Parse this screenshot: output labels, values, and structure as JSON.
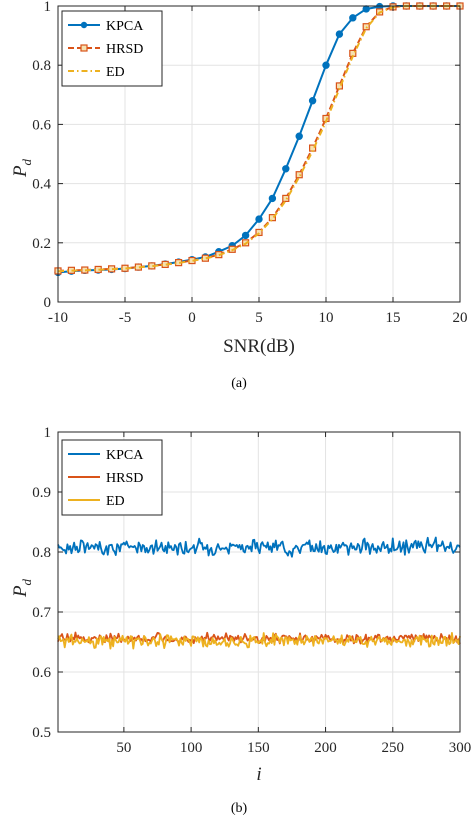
{
  "chart_data": [
    {
      "type": "line",
      "xlabel": "SNR(dB)",
      "ylabel": "P_d",
      "ylabel_main": "P",
      "ylabel_sub": "d",
      "caption": "(a)",
      "xlim": [
        -10,
        20
      ],
      "ylim": [
        0,
        1
      ],
      "xticks": [
        -10,
        -5,
        0,
        5,
        10,
        15,
        20
      ],
      "xtick_labels": [
        "-10",
        "-5",
        "0",
        "5",
        "10",
        "15",
        "20"
      ],
      "yticks": [
        0,
        0.2,
        0.4,
        0.6,
        0.8,
        1
      ],
      "ytick_labels": [
        "0",
        "0.2",
        "0.4",
        "0.6",
        "0.8",
        "1"
      ],
      "grid": true,
      "legend_position": "top-left",
      "x": [
        -10,
        -9,
        -8,
        -7,
        -6,
        -5,
        -4,
        -3,
        -2,
        -1,
        0,
        1,
        2,
        3,
        4,
        5,
        6,
        7,
        8,
        9,
        10,
        11,
        12,
        13,
        14,
        15,
        16,
        17,
        18,
        19,
        20
      ],
      "series": [
        {
          "name": "KPCA",
          "color": "#0072BD",
          "marker": "circle",
          "dash": "solid",
          "values": [
            0.1,
            0.104,
            0.107,
            0.108,
            0.11,
            0.113,
            0.118,
            0.122,
            0.128,
            0.135,
            0.143,
            0.152,
            0.17,
            0.19,
            0.225,
            0.28,
            0.35,
            0.45,
            0.56,
            0.68,
            0.8,
            0.905,
            0.96,
            0.99,
            0.998,
            1.0,
            1.0,
            1.0,
            1.0,
            1.0,
            1.0
          ]
        },
        {
          "name": "HRSD",
          "color": "#D95319",
          "marker": "square",
          "dash": "dashed",
          "values": [
            0.105,
            0.107,
            0.108,
            0.11,
            0.112,
            0.114,
            0.118,
            0.122,
            0.127,
            0.133,
            0.14,
            0.148,
            0.16,
            0.178,
            0.2,
            0.235,
            0.285,
            0.35,
            0.43,
            0.52,
            0.62,
            0.73,
            0.84,
            0.93,
            0.98,
            0.997,
            1.0,
            1.0,
            1.0,
            1.0,
            1.0
          ]
        },
        {
          "name": "ED",
          "color": "#EDB120",
          "marker": "none",
          "dash": "dashdot",
          "values": [
            0.104,
            0.106,
            0.107,
            0.109,
            0.111,
            0.113,
            0.117,
            0.121,
            0.126,
            0.132,
            0.139,
            0.147,
            0.158,
            0.175,
            0.197,
            0.232,
            0.28,
            0.343,
            0.422,
            0.51,
            0.61,
            0.72,
            0.83,
            0.925,
            0.978,
            0.996,
            1.0,
            1.0,
            1.0,
            1.0,
            1.0
          ]
        }
      ]
    },
    {
      "type": "line",
      "xlabel": "i",
      "ylabel": "P_d",
      "ylabel_main": "P",
      "ylabel_sub": "d",
      "caption": "(b)",
      "xlim": [
        1,
        300
      ],
      "ylim": [
        0.5,
        1
      ],
      "xticks": [
        50,
        100,
        150,
        200,
        250,
        300
      ],
      "xtick_labels": [
        "50",
        "100",
        "150",
        "200",
        "250",
        "300"
      ],
      "yticks": [
        0.5,
        0.6,
        0.7,
        0.8,
        0.9,
        1
      ],
      "ytick_labels": [
        "0.5",
        "0.6",
        "0.7",
        "0.8",
        "0.9",
        "1"
      ],
      "grid": true,
      "legend_position": "top-left",
      "series": [
        {
          "name": "KPCA",
          "color": "#0072BD",
          "mean": 0.808,
          "spread": 0.006
        },
        {
          "name": "HRSD",
          "color": "#D95319",
          "mean": 0.656,
          "spread": 0.004
        },
        {
          "name": "ED",
          "color": "#EDB120",
          "mean": 0.652,
          "spread": 0.005
        }
      ]
    }
  ]
}
